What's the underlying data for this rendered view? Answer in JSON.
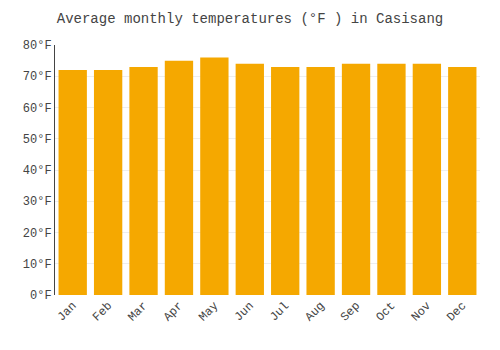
{
  "chart_data": {
    "type": "bar",
    "title": "Average monthly temperatures (°F ) in Casisang",
    "categories": [
      "Jan",
      "Feb",
      "Mar",
      "Apr",
      "May",
      "Jun",
      "Jul",
      "Aug",
      "Sep",
      "Oct",
      "Nov",
      "Dec"
    ],
    "values": [
      72,
      72,
      73,
      75,
      76,
      74,
      73,
      73,
      74,
      74,
      74,
      73
    ],
    "color": "#F5A800",
    "ylim": [
      0,
      80
    ],
    "yticks": [
      {
        "value": 0,
        "label": "0°F"
      },
      {
        "value": 10,
        "label": "10°F"
      },
      {
        "value": 20,
        "label": "20°F"
      },
      {
        "value": 30,
        "label": "30°F"
      },
      {
        "value": 40,
        "label": "40°F"
      },
      {
        "value": 50,
        "label": "50°F"
      },
      {
        "value": 60,
        "label": "60°F"
      },
      {
        "value": 70,
        "label": "70°F"
      },
      {
        "value": 80,
        "label": "80°F"
      }
    ],
    "grid": true
  }
}
